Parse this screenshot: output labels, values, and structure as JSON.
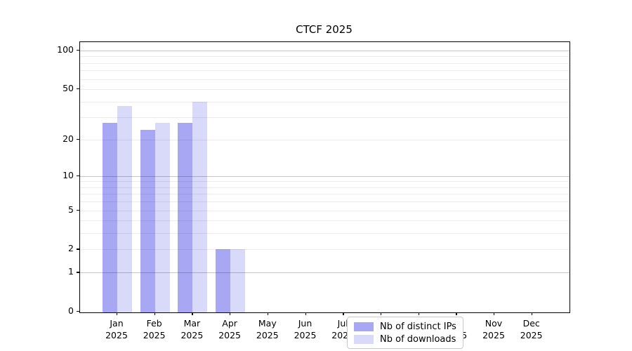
{
  "chart_data": {
    "type": "bar",
    "title": "CTCF 2025",
    "categories": [
      "Jan",
      "Feb",
      "Mar",
      "Apr",
      "May",
      "Jun",
      "Jul",
      "Aug",
      "Sep",
      "Oct",
      "Nov",
      "Dec"
    ],
    "x_year": "2025",
    "series": [
      {
        "name": "Nb of distinct IPs",
        "color": "#a7a7f4",
        "values": [
          27,
          24,
          27,
          2,
          0,
          0,
          0,
          0,
          0,
          0,
          0,
          0
        ]
      },
      {
        "name": "Nb of downloads",
        "color": "#d9d9f9",
        "values": [
          37,
          27,
          40,
          2,
          0,
          0,
          0,
          0,
          0,
          0,
          0,
          0
        ]
      }
    ],
    "yscale": "log1p",
    "ylim": [
      0,
      116
    ],
    "yticks": [
      0,
      1,
      2,
      5,
      10,
      20,
      50,
      100
    ],
    "gridlines_major": [
      1,
      10,
      100
    ],
    "gridlines_minor": [
      2,
      3,
      4,
      5,
      6,
      7,
      8,
      9,
      20,
      30,
      40,
      50,
      60,
      70,
      80,
      90
    ],
    "grid": "on",
    "legend_position": "lower center",
    "axis_color": "#000000",
    "background_color": "#ffffff"
  }
}
